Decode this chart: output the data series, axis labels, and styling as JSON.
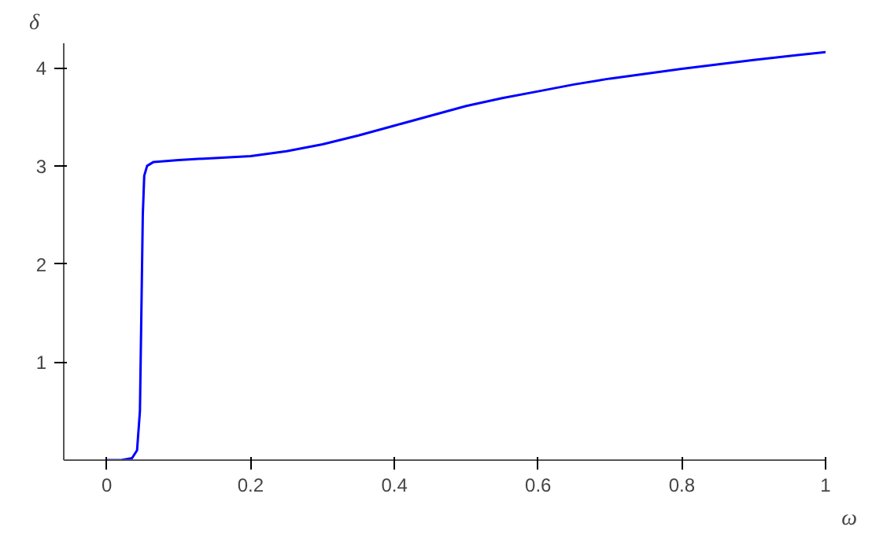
{
  "chart_data": {
    "type": "line",
    "xlabel": "ω",
    "ylabel": "δ",
    "x": [
      0,
      0.02,
      0.035,
      0.042,
      0.046,
      0.048,
      0.05,
      0.052,
      0.056,
      0.065,
      0.1,
      0.15,
      0.2,
      0.25,
      0.3,
      0.35,
      0.4,
      0.45,
      0.5,
      0.55,
      0.6,
      0.65,
      0.7,
      0.8,
      0.9,
      1.0
    ],
    "series": [
      {
        "color": "#0000ff",
        "values": [
          0,
          0,
          0.02,
          0.1,
          0.5,
          1.5,
          2.5,
          2.9,
          3.0,
          3.04,
          3.06,
          3.08,
          3.1,
          3.15,
          3.22,
          3.31,
          3.41,
          3.51,
          3.61,
          3.69,
          3.76,
          3.83,
          3.89,
          3.99,
          4.08,
          4.16
        ]
      }
    ],
    "xlim": [
      -0.06,
      1.0
    ],
    "ylim": [
      0,
      4.25
    ],
    "xticks": [
      0,
      0.2,
      0.4,
      0.6,
      0.8,
      1
    ],
    "yticks": [
      1,
      2,
      3,
      4
    ],
    "grid": false,
    "marker": "none",
    "line_style": "solid"
  }
}
